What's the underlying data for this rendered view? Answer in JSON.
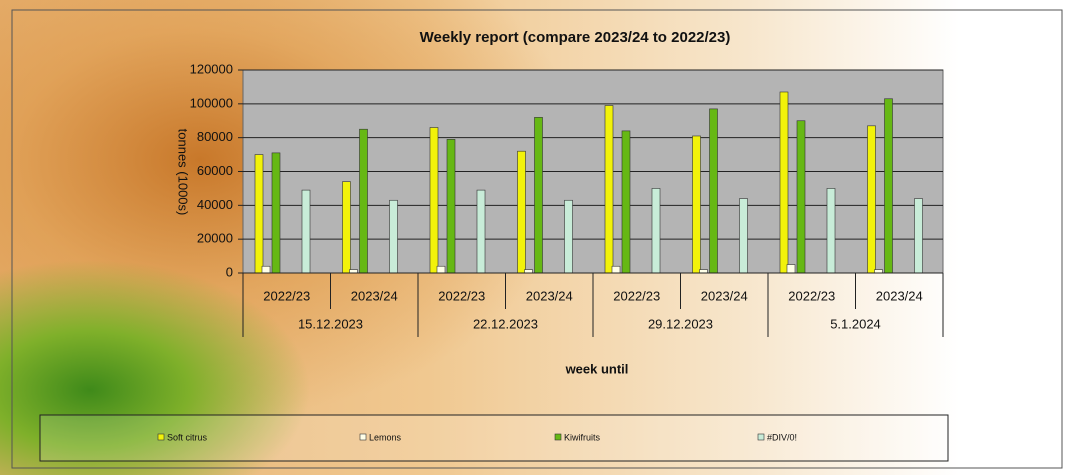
{
  "chart_data": {
    "type": "bar",
    "title": "Weekly report (compare 2023/24 to 2022/23)",
    "y_label": "tonnes (1000s)",
    "x_label": "week until",
    "categories": [
      "2022/23",
      "2023/24",
      "2022/23",
      "2023/24",
      "2022/23",
      "2023/24",
      "2022/23",
      "2023/24"
    ],
    "groups": [
      "15.12.2023",
      "22.12.2023",
      "29.12.2023",
      "5.1.2024"
    ],
    "series": [
      {
        "name": "Soft citrus",
        "color": "#f2f20a",
        "values": [
          70000,
          54000,
          86000,
          72000,
          99000,
          81000,
          107000,
          87000
        ]
      },
      {
        "name": "Lemons",
        "color": "#ffffe8",
        "values": [
          4000,
          2000,
          4000,
          2000,
          4000,
          2000,
          5000,
          2000
        ]
      },
      {
        "name": "Kiwifruits",
        "color": "#66b814",
        "values": [
          71000,
          85000,
          79000,
          92000,
          84000,
          97000,
          90000,
          103000
        ]
      },
      {
        "name": "#DIV/0!",
        "color": "#c8ecd8",
        "values": [
          49000,
          43000,
          49000,
          43000,
          50000,
          44000,
          50000,
          44000
        ]
      }
    ],
    "ylim": [
      0,
      120000
    ],
    "yticks": [
      0,
      20000,
      40000,
      60000,
      80000,
      100000,
      120000
    ],
    "grid": true
  }
}
